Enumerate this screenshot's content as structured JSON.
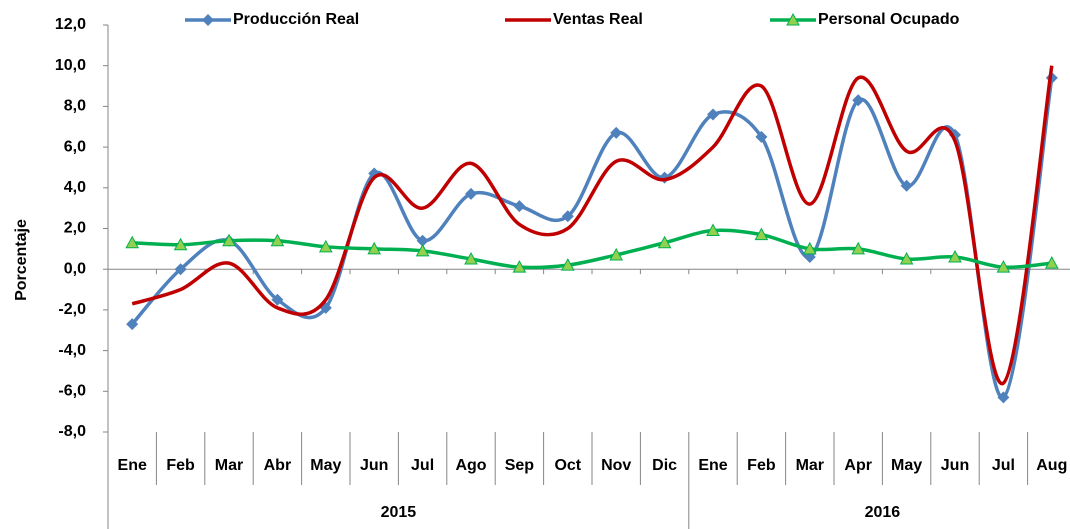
{
  "chart_data": {
    "type": "line",
    "y_label": "Porcentaje",
    "category_groups": [
      {
        "name": "2015",
        "categories": [
          "Ene",
          "Feb",
          "Mar",
          "Abr",
          "May",
          "Jun",
          "Jul",
          "Ago",
          "Sep",
          "Oct",
          "Nov",
          "Dic"
        ]
      },
      {
        "name": "2016",
        "categories": [
          "Ene",
          "Feb",
          "Mar",
          "Apr",
          "May",
          "Jun",
          "Jul",
          "Aug"
        ]
      }
    ],
    "series": [
      {
        "name": "Producción Real",
        "color": "#4f81bd",
        "marker": "diamond",
        "values": [
          -2.7,
          0.0,
          1.4,
          -1.5,
          -1.9,
          4.7,
          1.4,
          3.7,
          3.1,
          2.6,
          6.7,
          4.5,
          7.6,
          6.5,
          0.6,
          8.3,
          4.1,
          6.6,
          -6.3,
          9.4
        ]
      },
      {
        "name": "Ventas Real",
        "color": "#c00000",
        "marker": "none",
        "values": [
          -1.7,
          -1.0,
          0.3,
          -1.9,
          -1.5,
          4.5,
          3.0,
          5.2,
          2.2,
          2.0,
          5.3,
          4.4,
          6.0,
          9.0,
          3.2,
          9.4,
          5.8,
          6.3,
          -5.6,
          10.0
        ]
      },
      {
        "name": "Personal Ocupado",
        "color": "#00b050",
        "marker": "triangle",
        "marker_color": "#92d050",
        "values": [
          1.3,
          1.2,
          1.4,
          1.4,
          1.1,
          1.0,
          0.9,
          0.5,
          0.1,
          0.2,
          0.7,
          1.3,
          1.9,
          1.7,
          1.0,
          1.0,
          0.5,
          0.6,
          0.1,
          0.3
        ]
      }
    ],
    "smooth": true,
    "ylim": [
      -8,
      12
    ],
    "yticks": [
      {
        "value": -8,
        "label": "-8,0"
      },
      {
        "value": -6,
        "label": "-6,0"
      },
      {
        "value": -4,
        "label": "-4,0"
      },
      {
        "value": -2,
        "label": "-2,0"
      },
      {
        "value": 0,
        "label": "0,0"
      },
      {
        "value": 2,
        "label": "2,0"
      },
      {
        "value": 4,
        "label": "4,0"
      },
      {
        "value": 6,
        "label": "6,0"
      },
      {
        "value": 8,
        "label": "8,0"
      },
      {
        "value": 10,
        "label": "10,0"
      },
      {
        "value": 12,
        "label": "12,0"
      }
    ],
    "legend": "top"
  }
}
